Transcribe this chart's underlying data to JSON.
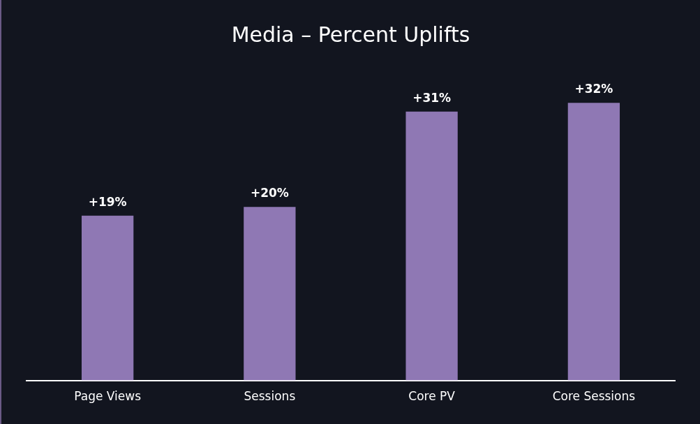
{
  "chart_data": {
    "type": "bar",
    "title": "Media  –  Percent Uplifts",
    "categories": [
      "Page Views",
      "Sessions",
      "Core PV",
      "Core Sessions"
    ],
    "values": [
      19,
      20,
      31,
      32
    ],
    "value_labels": [
      "+19%",
      "+20%",
      "+31%",
      "+32%"
    ],
    "color": "#8f78b4",
    "grid": false,
    "legend": false
  }
}
